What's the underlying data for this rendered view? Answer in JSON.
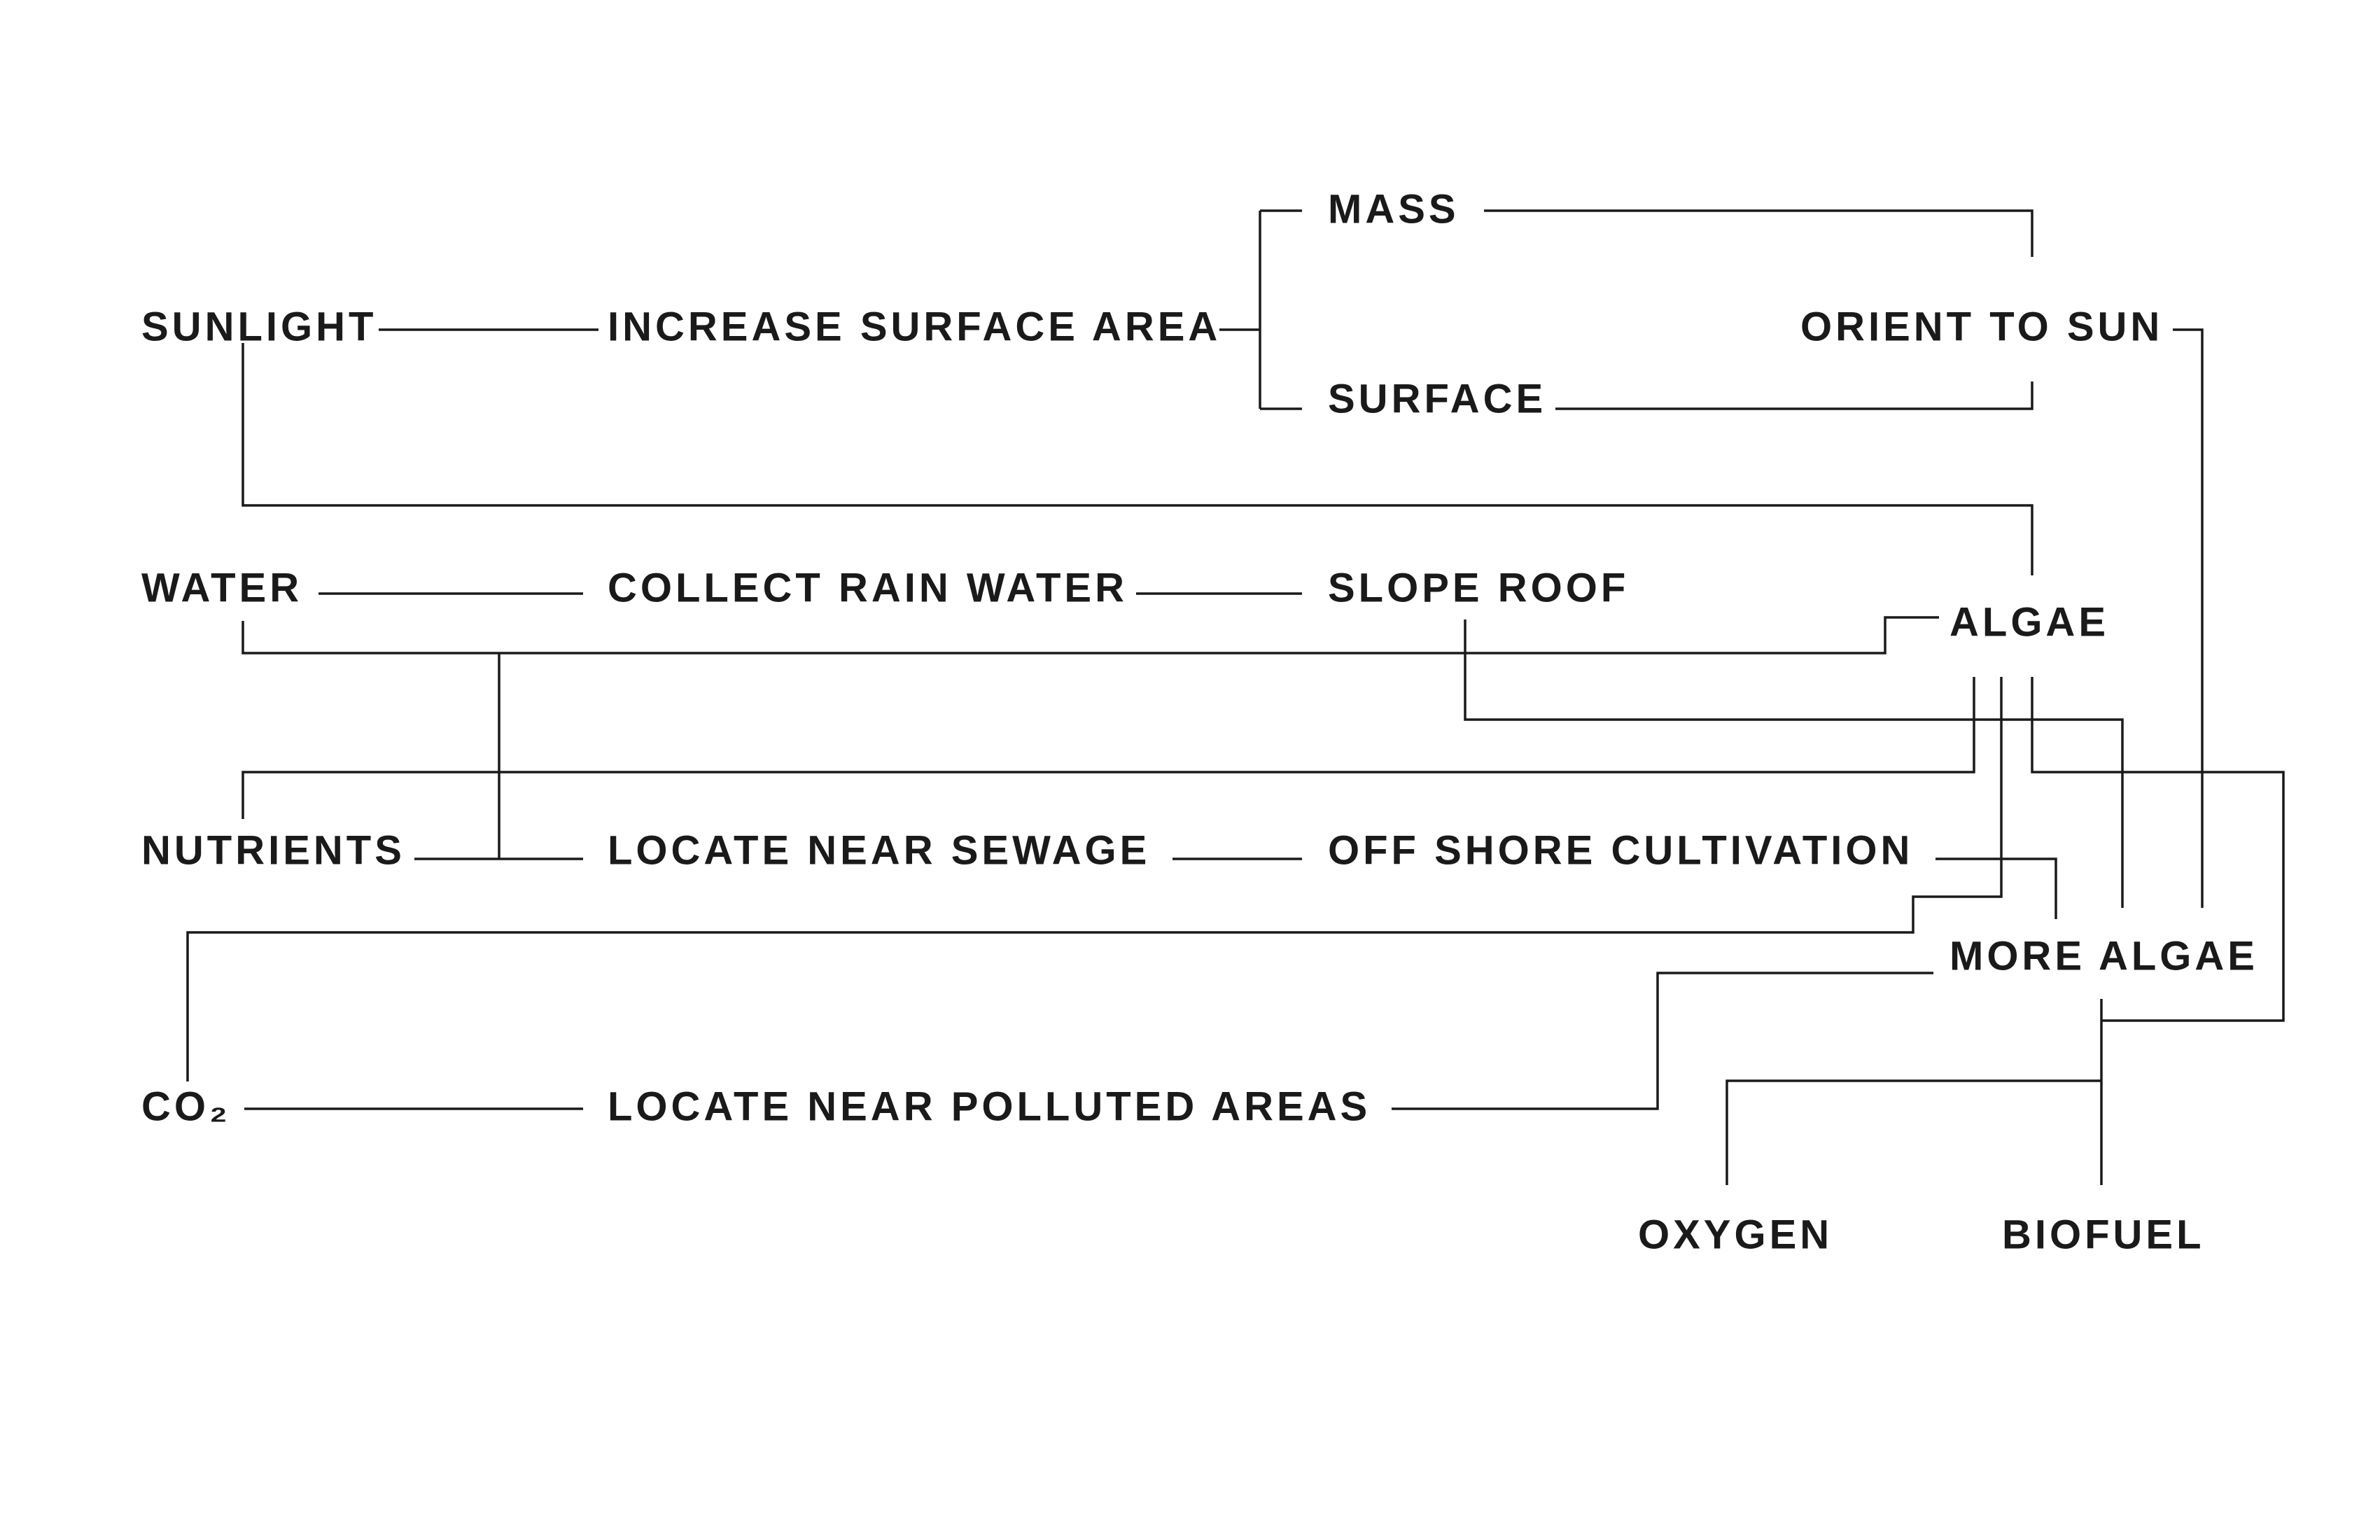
{
  "nodes": {
    "sunlight": "SUNLIGHT",
    "increase_surface_area": "INCREASE SURFACE AREA",
    "mass": "MASS",
    "surface": "SURFACE",
    "orient_to_sun": "ORIENT TO SUN",
    "water": "WATER",
    "collect_rain_water": "COLLECT RAIN WATER",
    "slope_roof": "SLOPE ROOF",
    "algae": "ALGAE",
    "nutrients": "NUTRIENTS",
    "locate_near_sewage": "LOCATE NEAR SEWAGE",
    "off_shore_cultivation": "OFF SHORE CULTIVATION",
    "more_algae": "MORE ALGAE",
    "co2": "CO₂",
    "locate_near_polluted_areas": "LOCATE NEAR POLLUTED AREAS",
    "oxygen": "OXYGEN",
    "biofuel": "BIOFUEL"
  }
}
